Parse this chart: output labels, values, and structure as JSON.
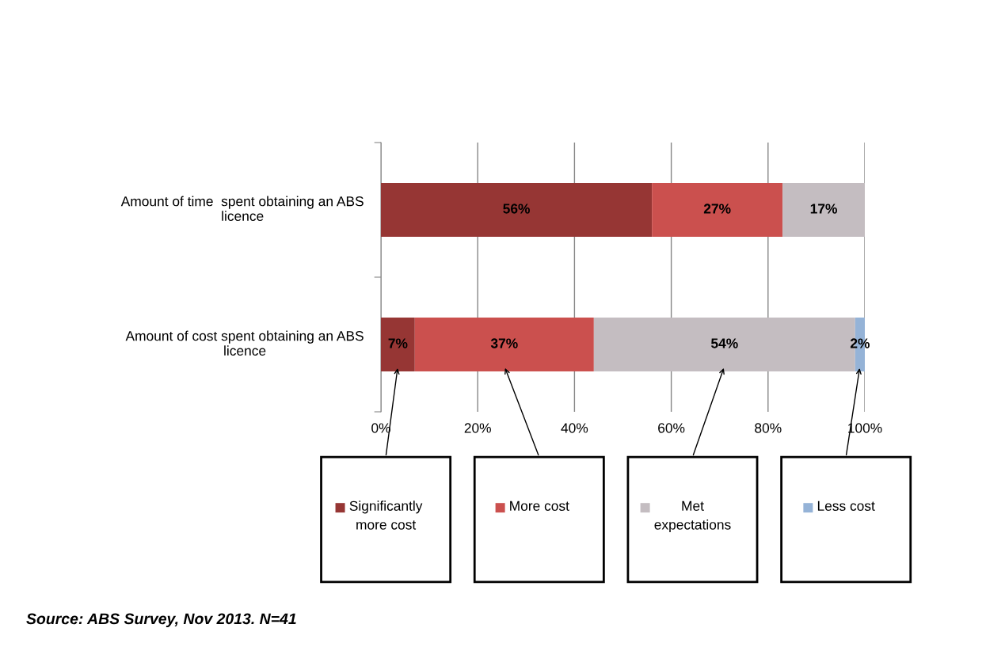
{
  "chart_data": {
    "type": "bar",
    "orientation": "horizontal",
    "stacked": true,
    "categories": [
      "Amount of time  spent obtaining an ABS\nlicence",
      "Amount of cost spent obtaining an ABS\nlicence"
    ],
    "series": [
      {
        "name": "Significantly\nmore cost",
        "color": "#963634",
        "values": [
          56,
          7
        ],
        "value_labels": [
          "56%",
          "7%"
        ]
      },
      {
        "name": "More cost",
        "color": "#cb504e",
        "values": [
          27,
          37
        ],
        "value_labels": [
          "27%",
          "37%"
        ]
      },
      {
        "name": "Met\nexpectations",
        "color": "#c4bdc1",
        "values": [
          17,
          54
        ],
        "value_labels": [
          "17%",
          "54%"
        ]
      },
      {
        "name": "Less cost",
        "color": "#95b3d7",
        "values": [
          null,
          2
        ],
        "value_labels": [
          null,
          "2%"
        ]
      }
    ],
    "xlim": [
      0,
      100
    ],
    "xticks": [
      {
        "value": 0,
        "label": "0%"
      },
      {
        "value": 20,
        "label": "20%"
      },
      {
        "value": 40,
        "label": "40%"
      },
      {
        "value": 60,
        "label": "60%"
      },
      {
        "value": 80,
        "label": "80%"
      },
      {
        "value": 100,
        "label": "100%"
      }
    ],
    "grid": "x",
    "legend": "bottom",
    "annotations": [
      "Source: ABS Survey, Nov 2013. N=41"
    ]
  }
}
